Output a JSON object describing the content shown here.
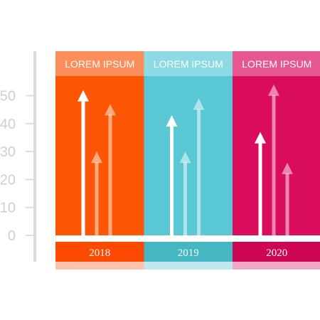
{
  "chart_data": {
    "type": "bar",
    "style": "arrows",
    "categories": [
      "2018",
      "2019",
      "2020"
    ],
    "headers": [
      "LOREM IPSUM",
      "LOREM IPSUM",
      "LOREM IPSUM"
    ],
    "groups": [
      {
        "year": "2018",
        "header": "LOREM IPSUM",
        "values": [
          52,
          30,
          47
        ]
      },
      {
        "year": "2019",
        "header": "LOREM IPSUM",
        "values": [
          43,
          30,
          49
        ]
      },
      {
        "year": "2020",
        "header": "LOREM IPSUM",
        "values": [
          37,
          54,
          26
        ]
      }
    ],
    "yticks": [
      0,
      10,
      20,
      30,
      40,
      50
    ],
    "ylim": [
      0,
      60
    ],
    "grid": false,
    "colors": {
      "2018": {
        "body": "#fc5604",
        "header": "#fc8e5c",
        "year": "#fc4a02",
        "strip": "#fcc3ac"
      },
      "2019": {
        "body": "#5ac8d4",
        "header": "#8ddbe2",
        "year": "#45b7c3",
        "strip": "#bfe9ed"
      },
      "2020": {
        "body": "#da0d5c",
        "header": "#e6578f",
        "year": "#cd0753",
        "strip": "#f0a8c4"
      },
      "axis": "#dddddd",
      "tick_text": "#cfcfcf"
    }
  }
}
